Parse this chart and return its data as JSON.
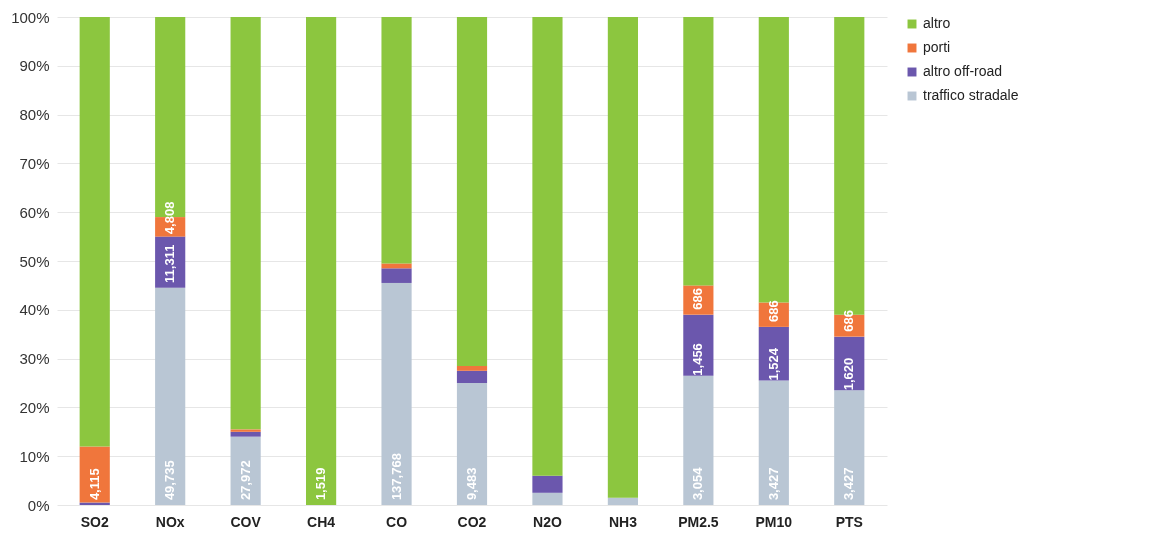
{
  "chart_data": {
    "type": "bar",
    "stacked": true,
    "categories": [
      "SO2",
      "NOx",
      "COV",
      "CH4",
      "CO",
      "CO2",
      "N2O",
      "NH3",
      "PM2.5",
      "PM10",
      "PTS"
    ],
    "series": [
      {
        "name": "traffico stradale",
        "color": "#b9c6d4",
        "values": [
          0,
          44.5,
          14,
          0,
          45.5,
          25,
          2.5,
          1.5,
          26.5,
          25.5,
          23.5
        ]
      },
      {
        "name": "altro off-road",
        "color": "#6b57ad",
        "values": [
          0.5,
          10.5,
          1,
          0,
          3,
          2.5,
          3.5,
          0,
          12.5,
          11,
          11
        ]
      },
      {
        "name": "porti",
        "color": "#f0763c",
        "values": [
          11.5,
          4,
          0.5,
          0,
          1,
          1,
          0,
          0,
          6,
          5,
          4.5
        ]
      },
      {
        "name": "altro",
        "color": "#8cc63f",
        "values": [
          88,
          41,
          84.5,
          100,
          50.5,
          71.5,
          94,
          98.5,
          55,
          58.5,
          61
        ]
      }
    ],
    "annotations": [
      {
        "text": "4,115",
        "x": "SO2",
        "y": 1
      },
      {
        "text": "49,735",
        "x": "NOx",
        "y": 1
      },
      {
        "text": "11,311",
        "x": "NOx",
        "y": 45.5
      },
      {
        "text": "4,808",
        "x": "NOx",
        "y": 55.5
      },
      {
        "text": "27,972",
        "x": "COV",
        "y": 1
      },
      {
        "text": "1,519",
        "x": "CH4",
        "y": 1
      },
      {
        "text": "137,768",
        "x": "CO",
        "y": 1
      },
      {
        "text": "9,483",
        "x": "CO2",
        "y": 1
      },
      {
        "text": "3,054",
        "x": "PM2.5",
        "y": 1
      },
      {
        "text": "1,456",
        "x": "PM2.5",
        "y": 26.5
      },
      {
        "text": "686",
        "x": "PM2.5",
        "y": 40
      },
      {
        "text": "3,427",
        "x": "PM10",
        "y": 1
      },
      {
        "text": "1,524",
        "x": "PM10",
        "y": 25.5
      },
      {
        "text": "686",
        "x": "PM10",
        "y": 37.5
      },
      {
        "text": "3,427",
        "x": "PTS",
        "y": 1
      },
      {
        "text": "1,620",
        "x": "PTS",
        "y": 23.5
      },
      {
        "text": "686",
        "x": "PTS",
        "y": 35.5
      }
    ],
    "ylim": [
      0,
      100
    ],
    "yticks": [
      {
        "value": 0,
        "label": "0%"
      },
      {
        "value": 10,
        "label": "10%"
      },
      {
        "value": 20,
        "label": "20%"
      },
      {
        "value": 30,
        "label": "30%"
      },
      {
        "value": 40,
        "label": "40%"
      },
      {
        "value": 50,
        "label": "50%"
      },
      {
        "value": 60,
        "label": "60%"
      },
      {
        "value": 70,
        "label": "70%"
      },
      {
        "value": 80,
        "label": "80%"
      },
      {
        "value": 90,
        "label": "90%"
      },
      {
        "value": 100,
        "label": "100%"
      }
    ],
    "grid": "y",
    "legend": "right"
  }
}
